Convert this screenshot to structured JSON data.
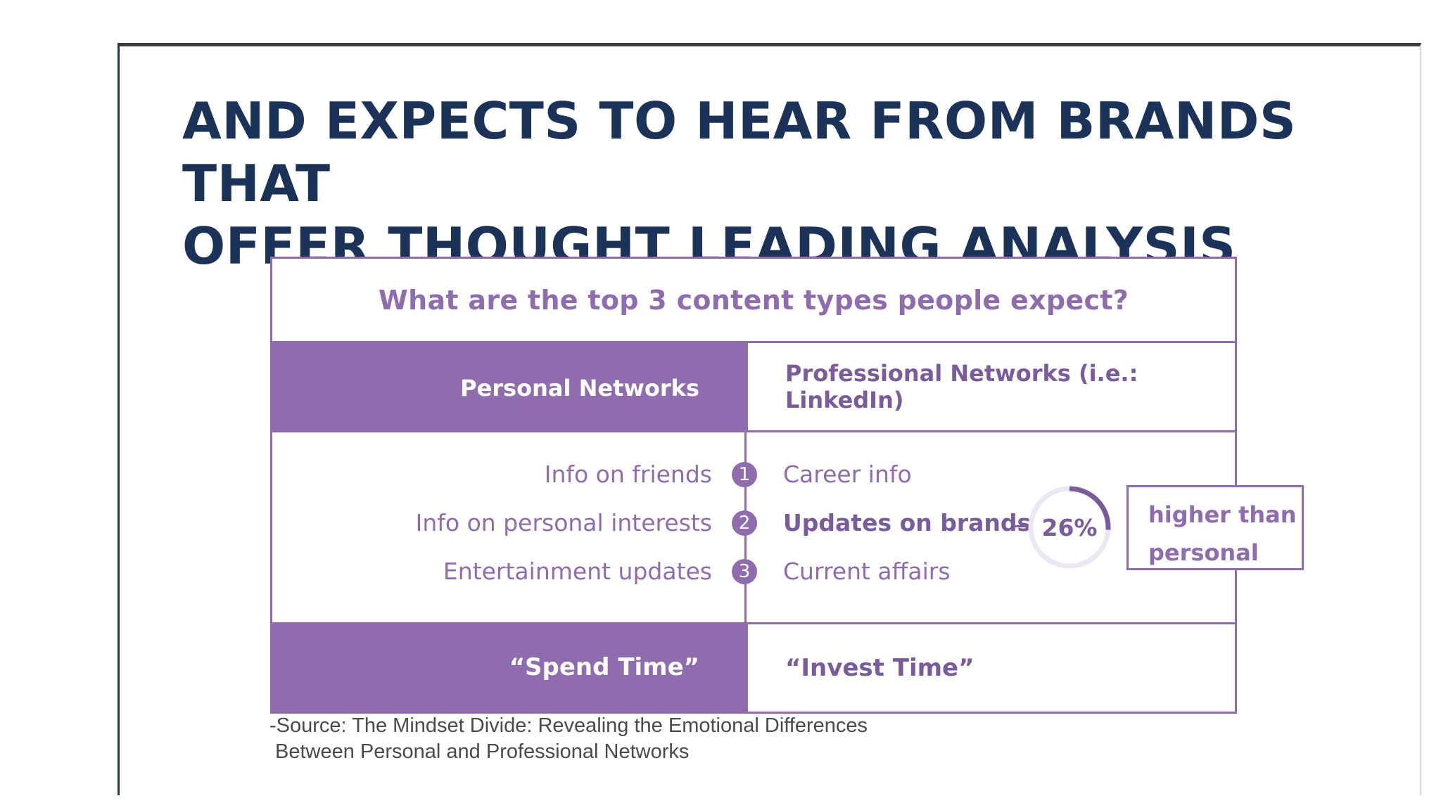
{
  "slide": {
    "title_line1": "AND EXPECTS TO HEAR FROM BRANDS THAT",
    "title_line2": "OFFER THOUGHT LEADING ANALYSIS"
  },
  "table": {
    "question": "What are the top 3 content types people expect?",
    "header": {
      "personal": "Personal Networks",
      "professional": "Professional Networks (i.e.: LinkedIn)"
    },
    "rows": [
      {
        "number": "1",
        "personal": "Info on friends",
        "professional": "Career info"
      },
      {
        "number": "2",
        "personal": "Info on personal interests",
        "professional": "Updates on brands"
      },
      {
        "number": "3",
        "personal": "Entertainment updates",
        "professional": "Current affairs"
      }
    ],
    "footer": {
      "personal": "“Spend Time”",
      "professional": "“Invest Time”"
    }
  },
  "highlight": {
    "percent_label": "26%",
    "percent_value": 26,
    "callout_line1": "higher than",
    "callout_line2": "personal"
  },
  "source": {
    "line1": "-Source: The Mindset Divide: Revealing the Emotional Differences",
    "line2": "Between Personal and Professional Networks"
  },
  "colors": {
    "title": "#1b3358",
    "accent": "#8e6cae",
    "accent_dark": "#7a5b9b",
    "donut_track": "#ece6f2"
  }
}
